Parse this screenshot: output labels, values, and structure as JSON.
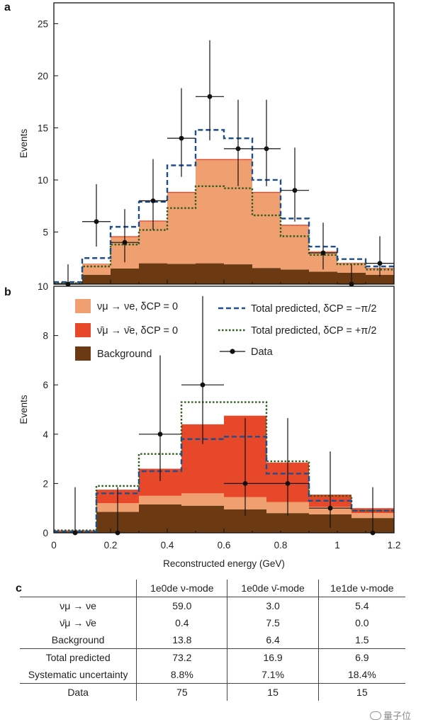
{
  "panel_a": {
    "letter": "a"
  },
  "panel_b": {
    "letter": "b"
  },
  "panel_c": {
    "letter": "c"
  },
  "legend": {
    "numu_nue": "νμ → νe, δCP = 0",
    "numubar_nuebar": "ν̄μ → ν̄e, δCP = 0",
    "background": "Background",
    "total_minus": "Total predicted, δCP = −π/2",
    "total_plus": "Total predicted, δCP = +π/2",
    "data": "Data"
  },
  "chart_data": [
    {
      "type": "bar",
      "panel": "a",
      "stacked": true,
      "xlabel": "",
      "ylabel": "Events",
      "xlim": [
        0,
        1.2
      ],
      "ylim": [
        0,
        27
      ],
      "yticks": [
        5,
        10,
        15,
        20,
        25
      ],
      "bin_edges": [
        0,
        0.15,
        0.3,
        0.45,
        0.6,
        0.75,
        0.9,
        1.05,
        1.2
      ],
      "fine_bin_edges": [
        0,
        0.1,
        0.2,
        0.3,
        0.4,
        0.5,
        0.6,
        0.7,
        0.8,
        0.9,
        1.0,
        1.1,
        1.2
      ],
      "series": [
        {
          "name": "Background",
          "color": "#6b3a12",
          "values": [
            0.1,
            0.9,
            1.5,
            2.0,
            1.95,
            2.0,
            1.9,
            1.55,
            1.4,
            1.2,
            1.1,
            0.9
          ]
        },
        {
          "name": "νμ → νe, δCP = 0",
          "color": "#f0a070",
          "values": [
            0,
            1.0,
            3.0,
            4.0,
            6.8,
            9.9,
            10.0,
            7.2,
            4.2,
            1.9,
            0.9,
            0.6
          ]
        },
        {
          "name": "ν̄μ → ν̄e, δCP = 0",
          "color": "#e8482a",
          "values": [
            0,
            0.05,
            0.1,
            0.1,
            0.1,
            0.1,
            0.1,
            0.1,
            0.1,
            0.05,
            0.05,
            0.05
          ]
        }
      ],
      "total_minus": [
        0.2,
        2.5,
        5.5,
        7.9,
        11.4,
        14.8,
        14.0,
        10.0,
        6.3,
        3.6,
        2.4,
        1.7
      ],
      "total_plus": [
        0.1,
        1.7,
        3.8,
        5.2,
        7.3,
        9.4,
        9.2,
        6.6,
        4.6,
        2.8,
        1.9,
        1.4
      ],
      "data_points": [
        {
          "x": 0.05,
          "y": 0,
          "yerr": [
            0,
            1.9
          ],
          "xerr": 0.05
        },
        {
          "x": 0.15,
          "y": 6,
          "yerr": [
            2.4,
            3.6
          ],
          "xerr": 0.05
        },
        {
          "x": 0.25,
          "y": 4,
          "yerr": [
            1.9,
            3.2
          ],
          "xerr": 0.05
        },
        {
          "x": 0.35,
          "y": 8,
          "yerr": [
            2.8,
            4.0
          ],
          "xerr": 0.05
        },
        {
          "x": 0.45,
          "y": 14,
          "yerr": [
            3.7,
            4.8
          ],
          "xerr": 0.05
        },
        {
          "x": 0.55,
          "y": 18,
          "yerr": [
            4.2,
            5.4
          ],
          "xerr": 0.05
        },
        {
          "x": 0.65,
          "y": 13,
          "yerr": [
            3.6,
            4.7
          ],
          "xerr": 0.05
        },
        {
          "x": 0.75,
          "y": 13,
          "yerr": [
            3.6,
            4.7
          ],
          "xerr": 0.05
        },
        {
          "x": 0.85,
          "y": 9,
          "yerr": [
            3.0,
            4.1
          ],
          "xerr": 0.05
        },
        {
          "x": 0.95,
          "y": 3,
          "yerr": [
            1.6,
            2.9
          ],
          "xerr": 0.05
        },
        {
          "x": 1.05,
          "y": 0,
          "yerr": [
            0,
            1.9
          ],
          "xerr": 0.05
        },
        {
          "x": 1.15,
          "y": 2,
          "yerr": [
            1.3,
            2.6
          ],
          "xerr": 0.05
        }
      ]
    },
    {
      "type": "bar",
      "panel": "b",
      "stacked": true,
      "xlabel": "Reconstructed energy (GeV)",
      "ylabel": "Events",
      "xlim": [
        0,
        1.2
      ],
      "ylim": [
        0,
        10
      ],
      "yticks": [
        0,
        2,
        4,
        6,
        8,
        10
      ],
      "xticks": [
        "0",
        "0.2",
        "0.4",
        "0.6",
        "0.8",
        "1",
        "1.2"
      ],
      "bin_edges": [
        0,
        0.15,
        0.3,
        0.45,
        0.6,
        0.75,
        0.9,
        1.05,
        1.2
      ],
      "series": [
        {
          "name": "Background",
          "color": "#6b3a12",
          "values": [
            0.05,
            0.85,
            1.15,
            1.1,
            0.95,
            0.8,
            0.75,
            0.6
          ]
        },
        {
          "name": "νμ → νe, δCP = 0",
          "color": "#f0a070",
          "values": [
            0.0,
            0.35,
            0.35,
            0.5,
            0.5,
            0.45,
            0.3,
            0.2
          ]
        },
        {
          "name": "ν̄μ → ν̄e, δCP = 0",
          "color": "#e8482a",
          "values": [
            0.05,
            0.55,
            1.1,
            2.8,
            3.3,
            1.6,
            0.5,
            0.2
          ]
        }
      ],
      "total_minus": [
        0.05,
        1.6,
        2.5,
        3.8,
        3.9,
        2.4,
        1.3,
        0.9
      ],
      "total_plus": [
        0.1,
        1.9,
        3.2,
        5.3,
        5.3,
        2.9,
        1.5,
        0.9
      ],
      "data_points": [
        {
          "x": 0.075,
          "y": 0,
          "yerr": [
            0,
            1.85
          ],
          "xerr": 0
        },
        {
          "x": 0.225,
          "y": 0,
          "yerr": [
            0,
            1.85
          ],
          "xerr": 0
        },
        {
          "x": 0.375,
          "y": 4,
          "yerr": [
            1.9,
            3.2
          ],
          "xerr": 0.075
        },
        {
          "x": 0.525,
          "y": 6,
          "yerr": [
            2.4,
            3.6
          ],
          "xerr": 0.075
        },
        {
          "x": 0.675,
          "y": 2,
          "yerr": [
            1.3,
            2.65
          ],
          "xerr": 0.075
        },
        {
          "x": 0.825,
          "y": 2,
          "yerr": [
            1.3,
            2.65
          ],
          "xerr": 0.075
        },
        {
          "x": 0.975,
          "y": 1,
          "yerr": [
            0.8,
            2.3
          ],
          "xerr": 0.075
        },
        {
          "x": 1.125,
          "y": 0,
          "yerr": [
            0,
            1.85
          ],
          "xerr": 0
        }
      ]
    }
  ],
  "table": {
    "headers": [
      "",
      "1e0de ν-mode",
      "1e0de ν̄-mode",
      "1e1de ν-mode"
    ],
    "rows": [
      [
        "νμ → νe",
        "59.0",
        "3.0",
        "5.4"
      ],
      [
        "ν̄μ → ν̄e",
        "0.4",
        "7.5",
        "0.0"
      ],
      [
        "Background",
        "13.8",
        "6.4",
        "1.5"
      ],
      [
        "Total predicted",
        "73.2",
        "16.9",
        "6.9"
      ],
      [
        "Systematic uncertainty",
        "8.8%",
        "7.1%",
        "18.4%"
      ],
      [
        "Data",
        "75",
        "15",
        "15"
      ]
    ]
  },
  "watermark": "量子位"
}
